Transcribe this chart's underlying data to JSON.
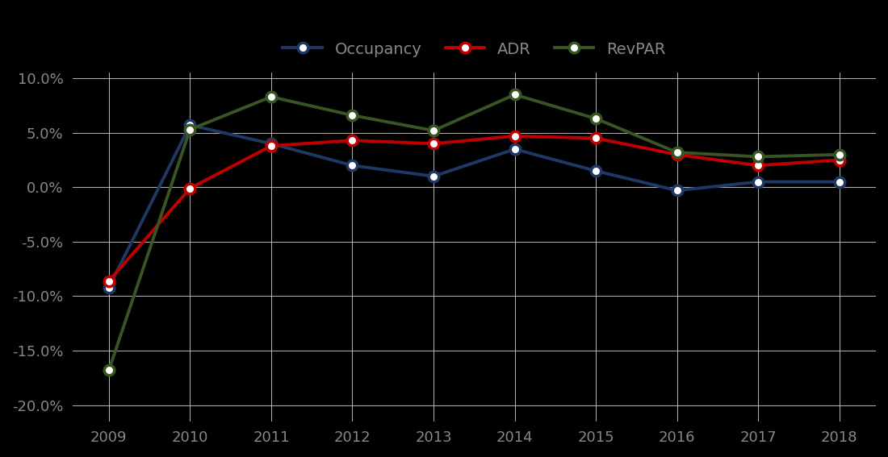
{
  "years": [
    2009,
    2010,
    2011,
    2012,
    2013,
    2014,
    2015,
    2016,
    2017,
    2018
  ],
  "occupancy": [
    -0.092,
    0.057,
    0.04,
    0.02,
    0.01,
    0.035,
    0.015,
    -0.003,
    0.005,
    0.005
  ],
  "adr": [
    -0.086,
    -0.001,
    0.038,
    0.043,
    0.04,
    0.047,
    0.045,
    0.03,
    0.02,
    0.025
  ],
  "revpar": [
    -0.168,
    0.053,
    0.083,
    0.066,
    0.052,
    0.085,
    0.063,
    0.032,
    0.028,
    0.03
  ],
  "occupancy_color": "#1f3864",
  "adr_color": "#c00000",
  "revpar_color": "#375623",
  "background_color": "#000000",
  "grid_color": "#ffffff",
  "text_color": "#888888",
  "ylim": [
    -0.215,
    0.105
  ],
  "yticks": [
    -0.2,
    -0.15,
    -0.1,
    -0.05,
    0.0,
    0.05,
    0.1
  ],
  "legend_labels": [
    "Occupancy",
    "ADR",
    "RevPAR"
  ],
  "line_width": 2.8,
  "marker_size": 9
}
